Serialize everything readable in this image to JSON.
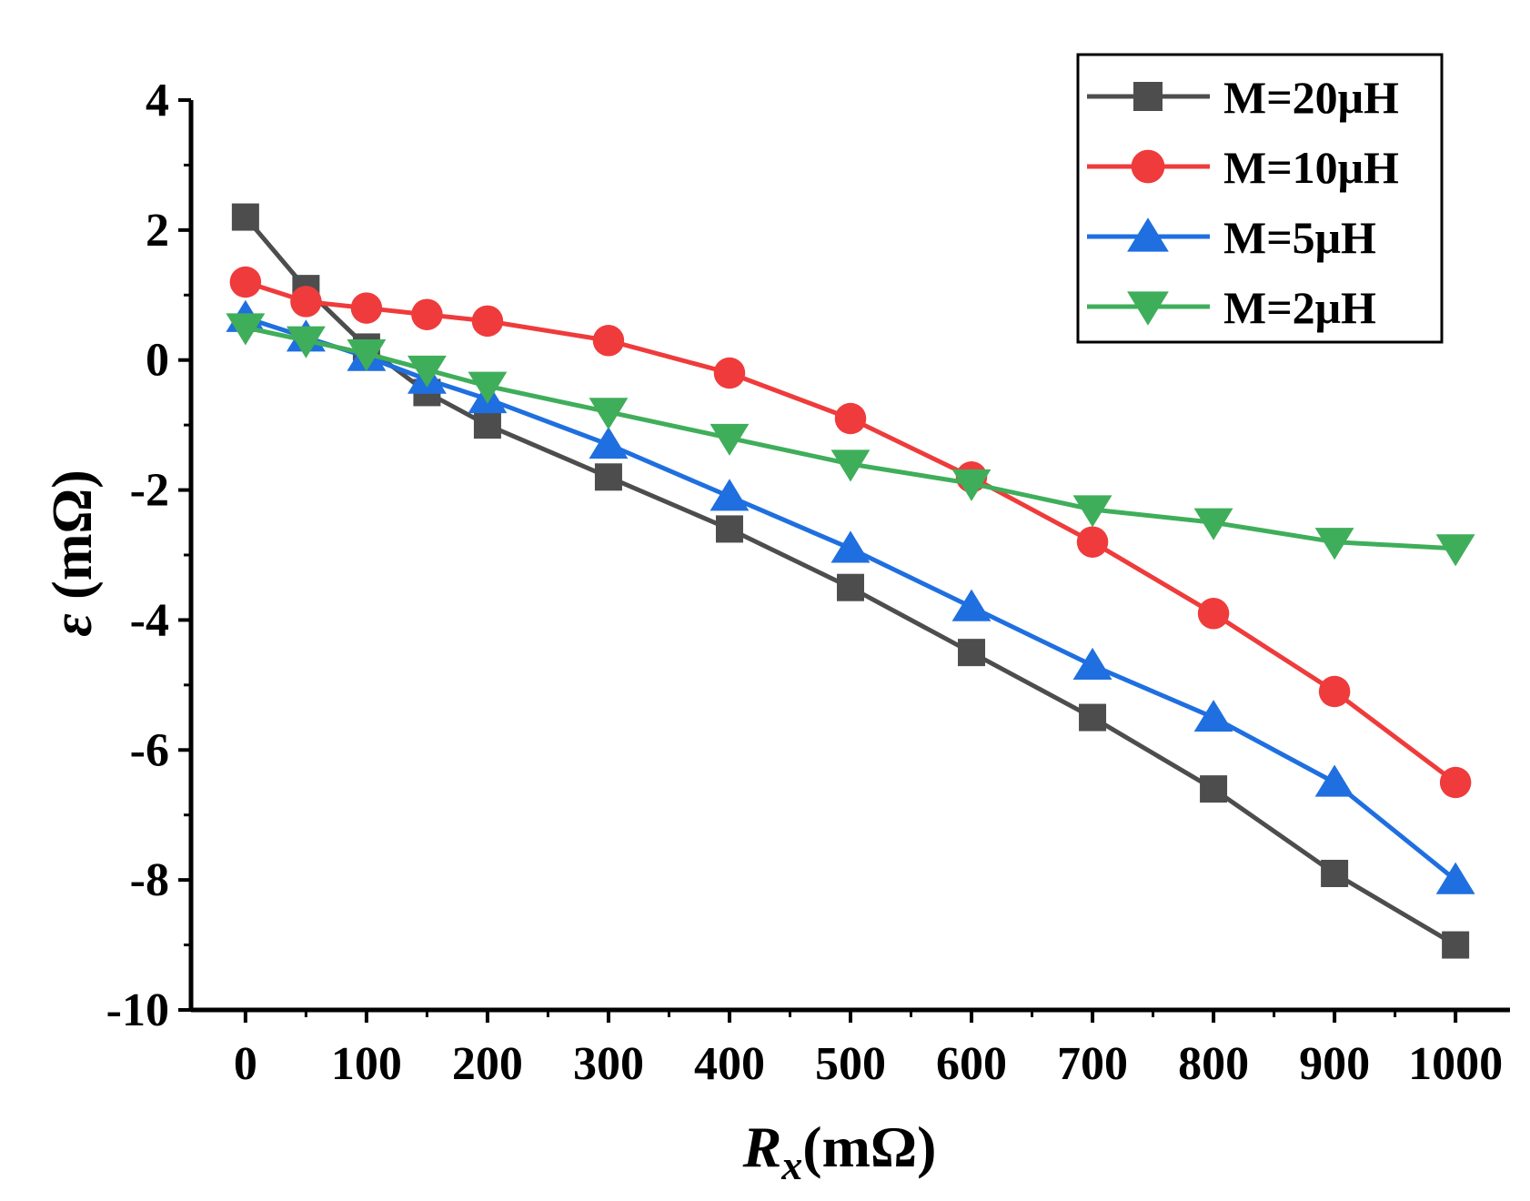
{
  "chart_data": {
    "type": "line",
    "x": [
      0,
      50,
      100,
      150,
      200,
      300,
      400,
      500,
      600,
      700,
      800,
      900,
      1000
    ],
    "series": [
      {
        "name": "M=20μH",
        "label": "M=20μH",
        "color": "#4d4d4d",
        "marker": "square",
        "values": [
          2.2,
          1.1,
          0.2,
          -0.5,
          -1.0,
          -1.8,
          -2.6,
          -3.5,
          -4.5,
          -5.5,
          -6.6,
          -7.9,
          -9.0
        ]
      },
      {
        "name": "M=10μH",
        "label": "M=10μH",
        "color": "#ef3b3b",
        "marker": "circle",
        "values": [
          1.2,
          0.9,
          0.8,
          0.7,
          0.6,
          0.3,
          -0.2,
          -0.9,
          -1.8,
          -2.8,
          -3.9,
          -5.1,
          -6.5
        ]
      },
      {
        "name": "M=5μH",
        "label": "M=5μH",
        "color": "#1f6fe0",
        "marker": "triangle-up",
        "values": [
          0.65,
          0.35,
          0.05,
          -0.3,
          -0.6,
          -1.3,
          -2.1,
          -2.9,
          -3.8,
          -4.7,
          -5.5,
          -6.5,
          -8.0
        ]
      },
      {
        "name": "M=2μH",
        "label": "M=2μH",
        "color": "#3fae5a",
        "marker": "triangle-down",
        "values": [
          0.5,
          0.3,
          0.1,
          -0.15,
          -0.4,
          -0.8,
          -1.2,
          -1.6,
          -1.9,
          -2.3,
          -2.5,
          -2.8,
          -2.9
        ]
      }
    ],
    "xlim": [
      -45,
      1045
    ],
    "ylim": [
      -10,
      4
    ],
    "xticks": [
      0,
      100,
      200,
      300,
      400,
      500,
      600,
      700,
      800,
      900,
      1000
    ],
    "xtick_labels": [
      "0",
      "100",
      "200",
      "300",
      "400",
      "500",
      "600",
      "700",
      "800",
      "900",
      "1000"
    ],
    "yticks": [
      4,
      2,
      0,
      -2,
      -4,
      -6,
      -8,
      -10
    ],
    "ytick_labels": [
      "4",
      "2",
      "0",
      "-2",
      "-4",
      "-6",
      "-8",
      "-10"
    ],
    "xlabel": {
      "main": "R",
      "sub": "x",
      "unit": "(mΩ)"
    },
    "ylabel": {
      "symbol": "ε",
      "unit": " (mΩ)"
    },
    "grid": false,
    "legend_position": "top-right"
  }
}
